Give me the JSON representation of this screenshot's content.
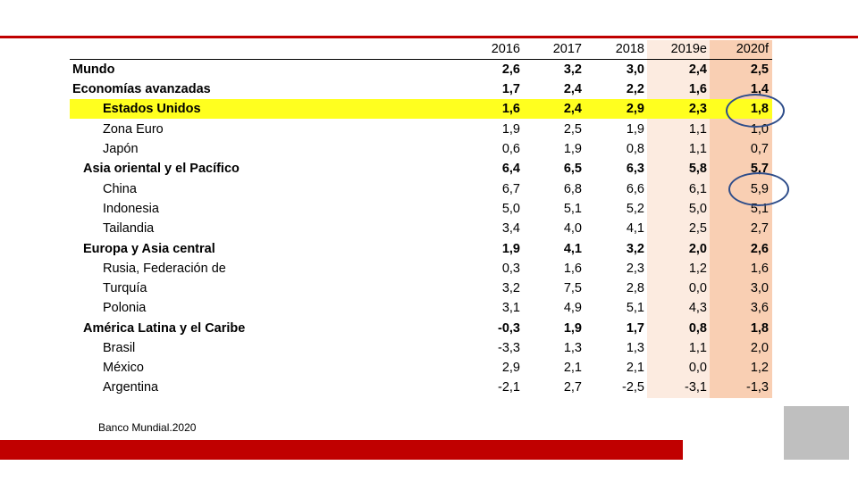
{
  "table": {
    "years": [
      "2016",
      "2017",
      "2018",
      "2019e",
      "2020f"
    ],
    "rows": [
      {
        "name": "Mundo",
        "values": [
          "2,6",
          "3,2",
          "3,0",
          "2,4",
          "2,5"
        ]
      },
      {
        "name": "Economías avanzadas",
        "values": [
          "1,7",
          "2,4",
          "2,2",
          "1,6",
          "1,4"
        ]
      },
      {
        "name": "Estados Unidos",
        "values": [
          "1,6",
          "2,4",
          "2,9",
          "2,3",
          "1,8"
        ]
      },
      {
        "name": "Zona Euro",
        "values": [
          "1,9",
          "2,5",
          "1,9",
          "1,1",
          "1,0"
        ]
      },
      {
        "name": "Japón",
        "values": [
          "0,6",
          "1,9",
          "0,8",
          "1,1",
          "0,7"
        ]
      },
      {
        "name": "Asia oriental y el Pacífico",
        "values": [
          "6,4",
          "6,5",
          "6,3",
          "5,8",
          "5,7"
        ]
      },
      {
        "name": "China",
        "values": [
          "6,7",
          "6,8",
          "6,6",
          "6,1",
          "5,9"
        ]
      },
      {
        "name": "Indonesia",
        "values": [
          "5,0",
          "5,1",
          "5,2",
          "5,0",
          "5,1"
        ]
      },
      {
        "name": "Tailandia",
        "values": [
          "3,4",
          "4,0",
          "4,1",
          "2,5",
          "2,7"
        ]
      },
      {
        "name": "Europa y Asia central",
        "values": [
          "1,9",
          "4,1",
          "3,2",
          "2,0",
          "2,6"
        ]
      },
      {
        "name": "Rusia, Federación de",
        "values": [
          "0,3",
          "1,6",
          "2,3",
          "1,2",
          "1,6"
        ]
      },
      {
        "name": "Turquía",
        "values": [
          "3,2",
          "7,5",
          "2,8",
          "0,0",
          "3,0"
        ]
      },
      {
        "name": "Polonia",
        "values": [
          "3,1",
          "4,9",
          "5,1",
          "4,3",
          "3,6"
        ]
      },
      {
        "name": "América Latina y el Caribe",
        "values": [
          "-0,3",
          "1,9",
          "1,7",
          "0,8",
          "1,8"
        ]
      },
      {
        "name": "Brasil",
        "values": [
          "-3,3",
          "1,3",
          "1,3",
          "1,1",
          "2,0"
        ]
      },
      {
        "name": "México",
        "values": [
          "2,9",
          "2,1",
          "2,1",
          "0,0",
          "1,2"
        ]
      },
      {
        "name": "Argentina",
        "values": [
          "-2,1",
          "2,7",
          "-2,5",
          "-3,1",
          "-1,3"
        ]
      }
    ]
  },
  "source": "Banco Mundial.2020",
  "colors": {
    "accent": "#c00000",
    "highlight": "#ffff1f",
    "circle": "#2e4d8a"
  }
}
